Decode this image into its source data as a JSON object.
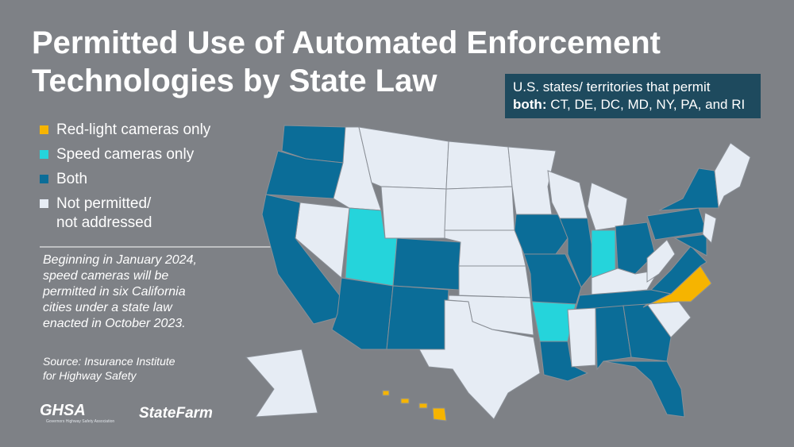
{
  "header": {
    "title": [
      "Permitted Use of Automated Enforcement",
      "Technologies by State Law"
    ]
  },
  "callout": {
    "lead": "U.S. states/ territories that permit",
    "lead2": "both:",
    "list": "CT, DE, DC, MD, NY, PA, and RI"
  },
  "legend": {
    "items": [
      {
        "label": [
          "Red-light cameras only"
        ],
        "color": "#f6b400"
      },
      {
        "label": [
          "Speed cameras only"
        ],
        "color": "#25d4db"
      },
      {
        "label": [
          "Both"
        ],
        "color": "#0b6d98"
      },
      {
        "label": [
          "Not permitted/",
          "not addressed"
        ],
        "color": "#e6ecf4"
      }
    ]
  },
  "note": [
    "Beginning in January 2024,",
    "speed cameras will be",
    "permitted in six California",
    "cities under a state law",
    "enacted in October 2023."
  ],
  "source": [
    "Source: Insurance Institute",
    "for Highway Safety"
  ],
  "logos": {
    "ghsa": "GHSA",
    "ghsa_sub": "Governors Highway Safety Association",
    "statefarm": "StateFarm"
  }
}
